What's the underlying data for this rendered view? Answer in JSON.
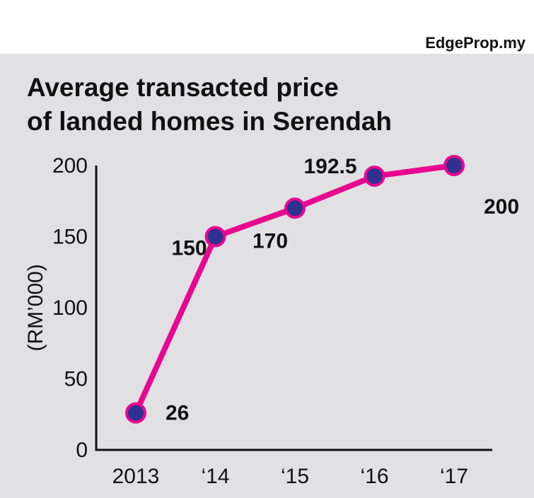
{
  "brand": "EdgeProp.my",
  "title_line1": "Average transacted price",
  "title_line2": "of landed homes in Serendah",
  "colors": {
    "line": "#e8078f",
    "marker": "#2e3192",
    "background": "#e1e1e3"
  },
  "chart_data": {
    "type": "line",
    "title": "Average transacted price of landed homes in Serendah",
    "xlabel": "",
    "ylabel": "(RM’000)",
    "ylim": [
      0,
      200
    ],
    "yticks": [
      0,
      50,
      100,
      150,
      200
    ],
    "categories": [
      "2013",
      "‘14",
      "‘15",
      "‘16",
      "‘17"
    ],
    "series": [
      {
        "values": [
          26,
          150,
          170,
          192.5,
          200
        ],
        "data_labels": [
          "26",
          "150",
          "170",
          "192.5",
          "200"
        ]
      }
    ],
    "grid": false,
    "legend": "none"
  }
}
